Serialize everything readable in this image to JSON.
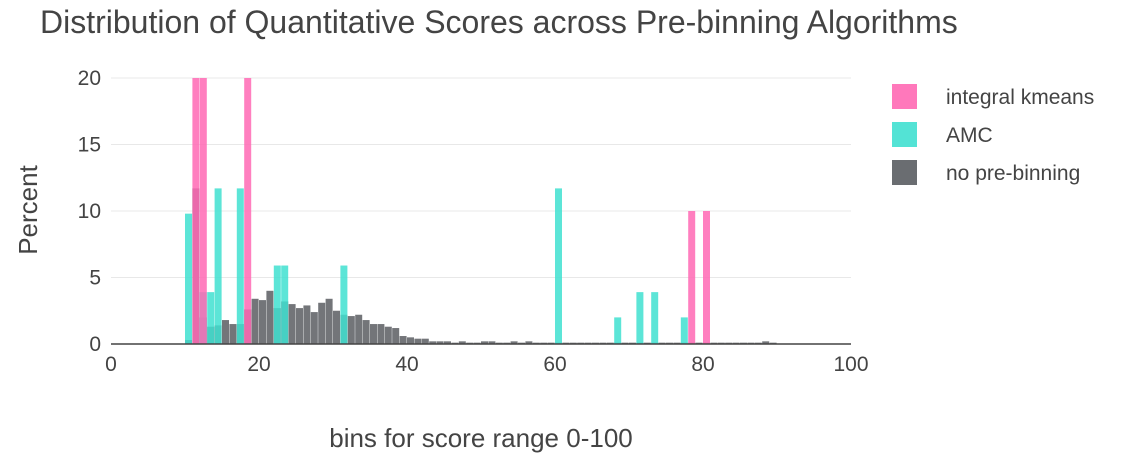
{
  "chart_data": {
    "type": "bar",
    "title": "Distribution of Quantitative Scores across Pre-binning Algorithms",
    "xlabel": "bins for score range 0-100",
    "ylabel": "Percent",
    "xlim": [
      0,
      100
    ],
    "ylim": [
      0,
      20
    ],
    "xticks": [
      "0",
      "20",
      "40",
      "60",
      "80",
      "100"
    ],
    "yticks": [
      "0",
      "5",
      "10",
      "15",
      "20"
    ],
    "bin_width": 1,
    "grid": true,
    "legend_position": "top-right",
    "series": [
      {
        "name": "no pre-binning",
        "color": "#5a5d62",
        "x": [
          10,
          11,
          12,
          13,
          14,
          15,
          16,
          17,
          18,
          19,
          20,
          21,
          22,
          23,
          24,
          25,
          26,
          27,
          28,
          29,
          30,
          31,
          32,
          33,
          34,
          35,
          36,
          37,
          38,
          39,
          40,
          41,
          42,
          43,
          44,
          45,
          46,
          47,
          48,
          49,
          50,
          51,
          52,
          53,
          54,
          55,
          56,
          57,
          58,
          59,
          60,
          61,
          62,
          63,
          64,
          65,
          66,
          67,
          68,
          69,
          70,
          71,
          72,
          73,
          74,
          75,
          76,
          77,
          78,
          79,
          80,
          81,
          82,
          83,
          84,
          85,
          86,
          87,
          88,
          89
        ],
        "values": [
          0.3,
          11.7,
          2.0,
          1.3,
          1.4,
          1.8,
          1.5,
          1.5,
          2.6,
          3.4,
          3.3,
          4.0,
          2.7,
          3.2,
          3.0,
          2.7,
          2.9,
          2.4,
          3.1,
          3.4,
          2.5,
          2.2,
          2.1,
          2.2,
          1.8,
          1.5,
          1.5,
          1.3,
          1.2,
          0.6,
          0.5,
          0.4,
          0.4,
          0.2,
          0.2,
          0.2,
          0.1,
          0.2,
          0.1,
          0.1,
          0.2,
          0.2,
          0.1,
          0.1,
          0.2,
          0.1,
          0.2,
          0.1,
          0.1,
          0.1,
          0.1,
          0.1,
          0.1,
          0.1,
          0.1,
          0.1,
          0.1,
          0.1,
          0.1,
          0.1,
          0.1,
          0.1,
          0.1,
          0.1,
          0.1,
          0.1,
          0.1,
          0.1,
          0.1,
          0.1,
          0.1,
          0.1,
          0.1,
          0.1,
          0.1,
          0.1,
          0.1,
          0.1,
          0.2,
          0.1
        ]
      },
      {
        "name": "AMC",
        "color": "#40e0d0",
        "x": [
          10,
          12,
          13,
          14,
          17,
          22,
          23,
          31,
          60,
          68,
          71,
          73,
          77
        ],
        "values": [
          9.8,
          3.9,
          3.9,
          11.7,
          11.7,
          5.9,
          5.9,
          5.9,
          11.7,
          2.0,
          3.9,
          3.9,
          2.0
        ]
      },
      {
        "name": "integral kmeans",
        "color": "#ff69b4",
        "x": [
          11,
          12,
          18,
          78,
          80
        ],
        "values": [
          20,
          20,
          20,
          10,
          10
        ]
      }
    ]
  }
}
